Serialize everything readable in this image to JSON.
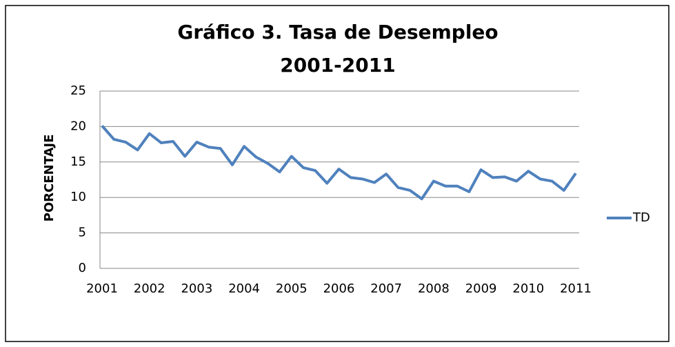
{
  "chart_data": {
    "type": "line",
    "title": "Gráfico 3. Tasa de Desempleo",
    "subtitle": "2001-2011",
    "y_label": "PORCENTAJE",
    "categories": [
      "2001",
      null,
      null,
      null,
      "2002",
      null,
      null,
      null,
      "2003",
      null,
      null,
      null,
      "2004",
      null,
      null,
      null,
      "2005",
      null,
      null,
      null,
      "2006",
      null,
      null,
      null,
      "2007",
      null,
      null,
      null,
      "2008",
      null,
      null,
      null,
      "2009",
      null,
      null,
      null,
      "2010",
      null,
      null,
      null,
      "2011"
    ],
    "series": [
      {
        "name": "TD",
        "color": "#4f81bd",
        "values": [
          20.1,
          18.2,
          17.8,
          16.7,
          19.0,
          17.7,
          17.9,
          15.8,
          17.8,
          17.1,
          16.9,
          14.6,
          17.2,
          15.7,
          14.8,
          13.6,
          15.8,
          14.2,
          13.8,
          12.0,
          14.0,
          12.8,
          12.6,
          12.1,
          13.3,
          11.4,
          11.0,
          9.8,
          12.3,
          11.6,
          11.6,
          10.8,
          13.9,
          12.8,
          12.9,
          12.3,
          13.7,
          12.6,
          12.3,
          11.0,
          13.4
        ]
      }
    ],
    "ylim": [
      0,
      25
    ],
    "yticks": [
      0,
      5,
      10,
      15,
      20,
      25
    ],
    "grid": true,
    "legend": "right"
  }
}
